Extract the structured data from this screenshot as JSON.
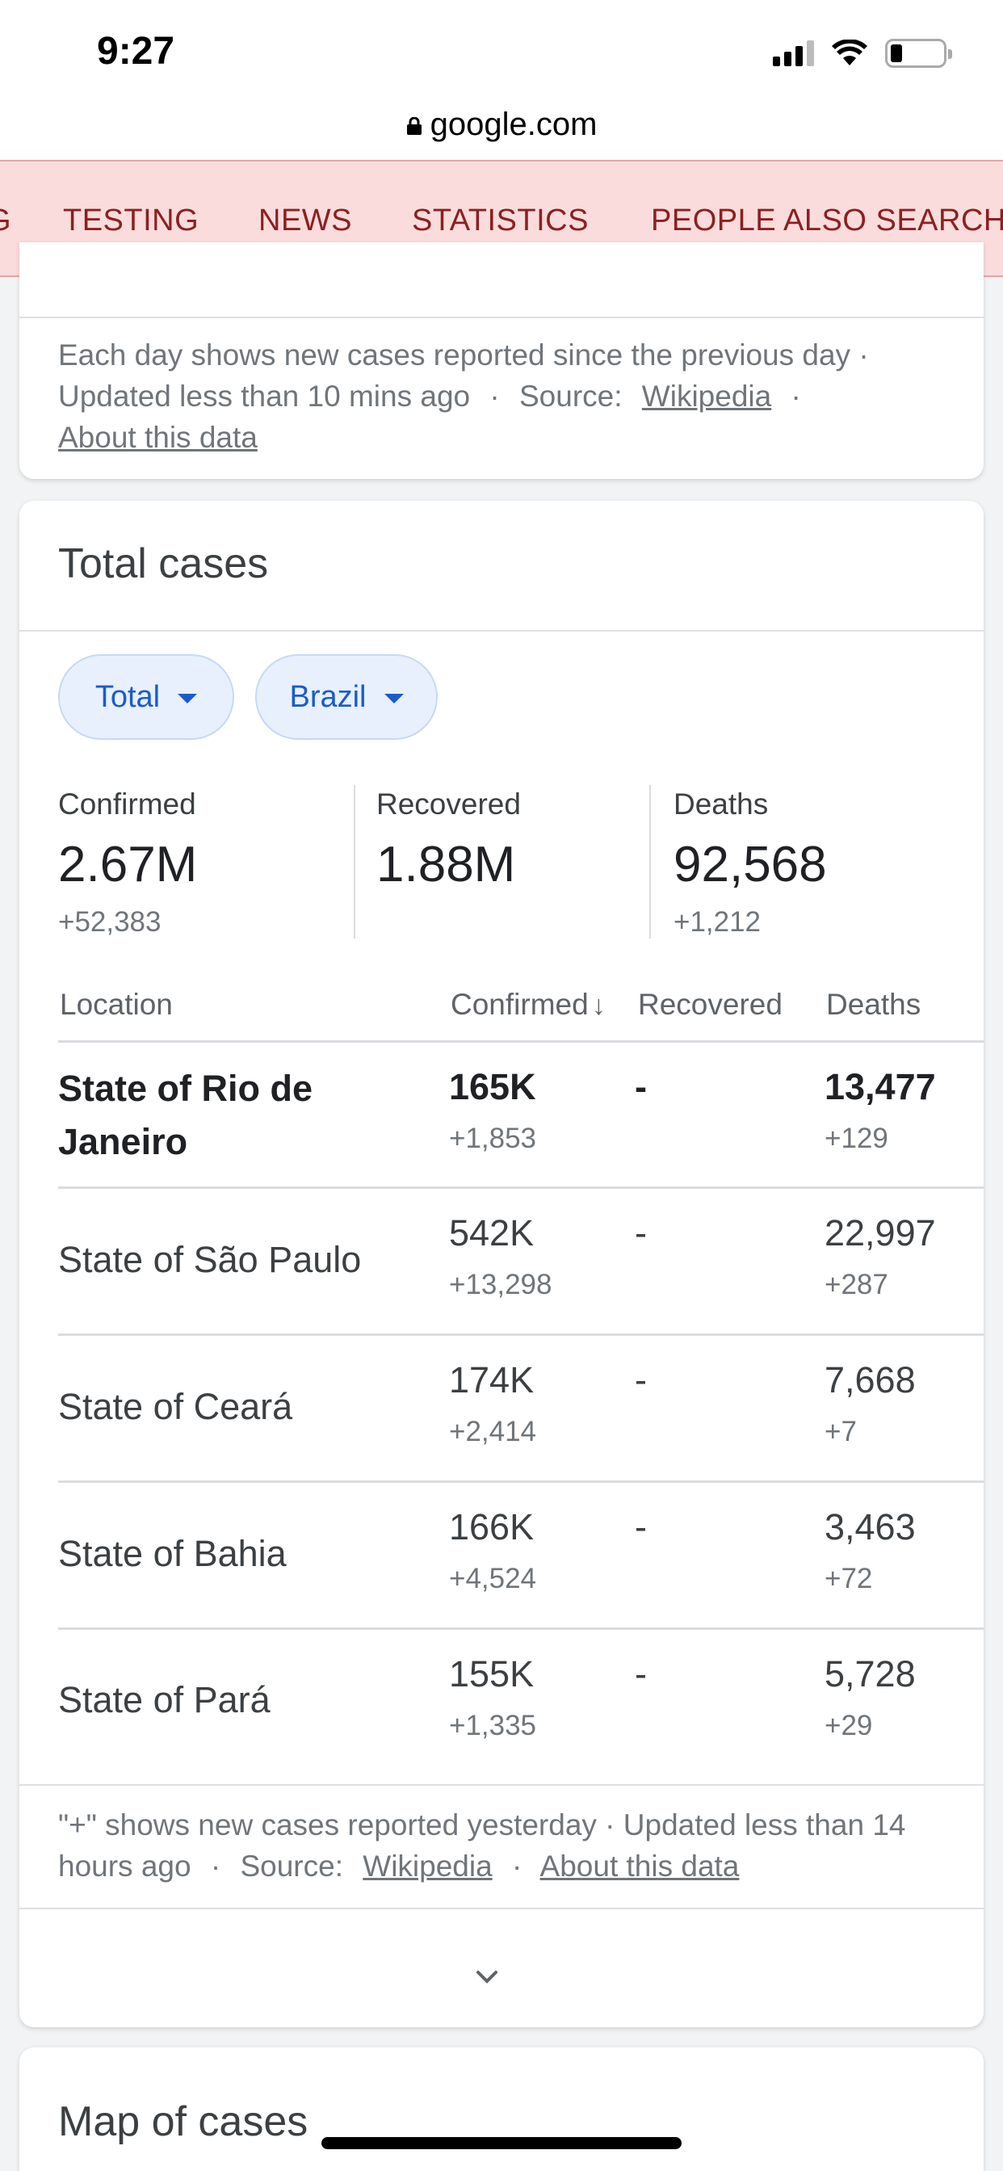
{
  "status_bar": {
    "time": "9:27"
  },
  "browser": {
    "url": "google.com"
  },
  "tabs": [
    {
      "label": "G"
    },
    {
      "label": "TESTING"
    },
    {
      "label": "NEWS"
    },
    {
      "label": "STATISTICS",
      "active": true
    },
    {
      "label": "PEOPLE ALSO SEARCH"
    }
  ],
  "prev_card": {
    "note": "Each day shows new cases reported since the previous day ·",
    "updated": "Updated less than 10 mins ago",
    "source_label": "Source:",
    "source_link": "Wikipedia",
    "about_link": "About this data",
    "sep": "·"
  },
  "total_cases": {
    "title": "Total cases",
    "filters": {
      "metric": "Total",
      "region": "Brazil"
    },
    "summary": {
      "confirmed": {
        "label": "Confirmed",
        "value": "2.67M",
        "delta": "+52,383"
      },
      "recovered": {
        "label": "Recovered",
        "value": "1.88M"
      },
      "deaths": {
        "label": "Deaths",
        "value": "92,568",
        "delta": "+1,212"
      }
    },
    "table": {
      "headers": {
        "location": "Location",
        "confirmed": "Confirmed",
        "recovered": "Recovered",
        "deaths": "Deaths"
      },
      "rows": [
        {
          "location_line1": "State of Rio de",
          "location_line2": "Janeiro",
          "confirmed": "165K",
          "confirmed_delta": "+1,853",
          "recovered": "-",
          "deaths": "13,477",
          "deaths_delta": "+129"
        },
        {
          "location": "State of São Paulo",
          "confirmed": "542K",
          "confirmed_delta": "+13,298",
          "recovered": "-",
          "deaths": "22,997",
          "deaths_delta": "+287"
        },
        {
          "location": "State of Ceará",
          "confirmed": "174K",
          "confirmed_delta": "+2,414",
          "recovered": "-",
          "deaths": "7,668",
          "deaths_delta": "+7"
        },
        {
          "location": "State of Bahia",
          "confirmed": "166K",
          "confirmed_delta": "+4,524",
          "recovered": "-",
          "deaths": "3,463",
          "deaths_delta": "+72"
        },
        {
          "location": "State of Pará",
          "confirmed": "155K",
          "confirmed_delta": "+1,335",
          "recovered": "-",
          "deaths": "5,728",
          "deaths_delta": "+29"
        }
      ]
    },
    "footnote": {
      "line1": "\"+\" shows new cases reported yesterday · Updated less than 14",
      "line2_prefix": "hours ago",
      "source_label": "Source:",
      "source_link": "Wikipedia",
      "about_link": "About this data",
      "sep": "·"
    }
  },
  "map_card": {
    "title": "Map of cases"
  }
}
